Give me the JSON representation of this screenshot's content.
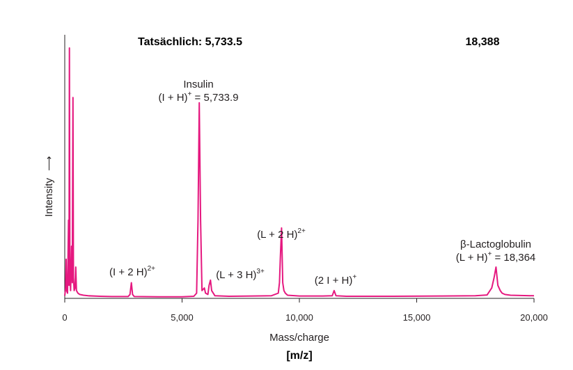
{
  "chart_data": {
    "type": "line",
    "xlabel": "Mass/charge",
    "xunit": "[m/z]",
    "ylabel": "Intensity",
    "ylabel_arrow": "⟶",
    "xlim": [
      0,
      20000
    ],
    "ylim": [
      0,
      100
    ],
    "x_ticks": [
      0,
      5000,
      10000,
      15000,
      20000
    ],
    "x_tick_labels": [
      "0",
      "5,000",
      "10,000",
      "15,000",
      "20,000"
    ],
    "grid": false,
    "line_color": "#e5187f",
    "series": [
      {
        "points": [
          [
            0,
            1
          ],
          [
            40,
            4
          ],
          [
            60,
            15
          ],
          [
            80,
            3
          ],
          [
            120,
            2
          ],
          [
            160,
            30
          ],
          [
            180,
            5
          ],
          [
            200,
            96
          ],
          [
            220,
            10
          ],
          [
            250,
            3
          ],
          [
            290,
            20
          ],
          [
            320,
            6
          ],
          [
            350,
            77
          ],
          [
            370,
            8
          ],
          [
            400,
            3
          ],
          [
            440,
            4
          ],
          [
            470,
            12
          ],
          [
            500,
            3
          ],
          [
            560,
            2
          ],
          [
            640,
            1.5
          ],
          [
            800,
            1.2
          ],
          [
            1000,
            1
          ],
          [
            1500,
            0.8
          ],
          [
            2000,
            0.7
          ],
          [
            2700,
            0.7
          ],
          [
            2780,
            1.5
          ],
          [
            2840,
            6
          ],
          [
            2890,
            1.5
          ],
          [
            2960,
            0.7
          ],
          [
            4000,
            0.6
          ],
          [
            5000,
            0.6
          ],
          [
            5500,
            0.8
          ],
          [
            5620,
            2
          ],
          [
            5680,
            30
          ],
          [
            5734,
            75
          ],
          [
            5790,
            30
          ],
          [
            5850,
            3
          ],
          [
            5950,
            4
          ],
          [
            6000,
            2
          ],
          [
            6100,
            1.5
          ],
          [
            6150,
            5
          ],
          [
            6210,
            7
          ],
          [
            6260,
            3
          ],
          [
            6400,
            1
          ],
          [
            7000,
            0.8
          ],
          [
            8000,
            0.9
          ],
          [
            8800,
            1
          ],
          [
            9100,
            2
          ],
          [
            9150,
            6
          ],
          [
            9190,
            16
          ],
          [
            9240,
            27
          ],
          [
            9290,
            6
          ],
          [
            9340,
            3
          ],
          [
            9400,
            2
          ],
          [
            9500,
            1.2
          ],
          [
            10000,
            0.9
          ],
          [
            11000,
            0.9
          ],
          [
            11400,
            1
          ],
          [
            11480,
            3
          ],
          [
            11560,
            1
          ],
          [
            12000,
            0.8
          ],
          [
            14000,
            0.8
          ],
          [
            16000,
            0.9
          ],
          [
            17500,
            1
          ],
          [
            18000,
            1.3
          ],
          [
            18200,
            4
          ],
          [
            18300,
            8
          ],
          [
            18380,
            12
          ],
          [
            18460,
            5
          ],
          [
            18560,
            3
          ],
          [
            18640,
            2
          ],
          [
            18760,
            1.5
          ],
          [
            19000,
            1.2
          ],
          [
            20000,
            1
          ]
        ]
      }
    ],
    "annotations": [
      {
        "lines": [
          "Insulin",
          "(I + H)^+ = 5,733.9"
        ]
      },
      {
        "lines": [
          "(I + 2 H)^2+"
        ]
      },
      {
        "lines": [
          "(L + 3 H)^3+"
        ]
      },
      {
        "lines": [
          "(L + 2 H)^2+"
        ]
      },
      {
        "lines": [
          "(2 I + H)^+"
        ]
      },
      {
        "lines": [
          "β-Lactoglobulin",
          "(L + H)^+ = 18,364"
        ]
      }
    ],
    "notes": [
      "Tatsächlich: 5,733.5",
      "18,388"
    ]
  }
}
